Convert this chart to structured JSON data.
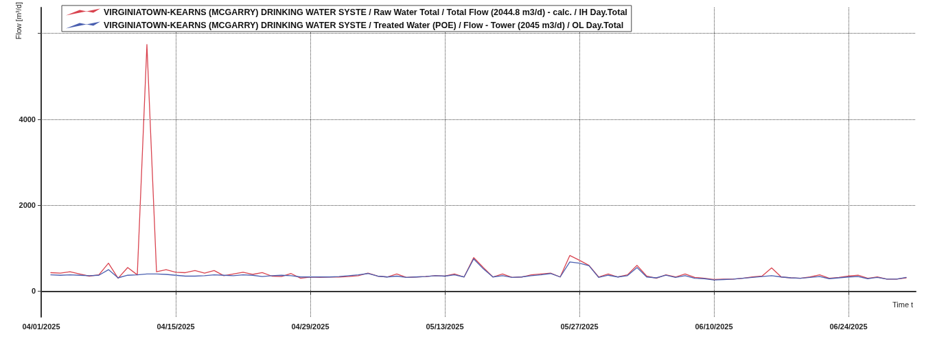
{
  "chart_data": {
    "type": "line",
    "ylabel": "Flow [m³/d]",
    "xlabel": "Time t",
    "legend": "top left",
    "grid": true,
    "marker": "none",
    "line_style": "solid",
    "xlim": [
      "2025-04-01",
      "2025-07-01"
    ],
    "xticks": [
      {
        "value": "2025-04-01",
        "label": "04/01/2025"
      },
      {
        "value": "2025-04-15",
        "label": "04/15/2025"
      },
      {
        "value": "2025-04-29",
        "label": "04/29/2025"
      },
      {
        "value": "2025-05-13",
        "label": "05/13/2025"
      },
      {
        "value": "2025-05-27",
        "label": "05/27/2025"
      },
      {
        "value": "2025-06-10",
        "label": "06/10/2025"
      },
      {
        "value": "2025-06-24",
        "label": "06/24/2025"
      }
    ],
    "ylim": [
      -600,
      6600
    ],
    "yticks": [
      0,
      2000,
      4000,
      {
        "value": 6000,
        "label": null
      }
    ],
    "x": [
      "2025-04-02",
      "2025-04-03",
      "2025-04-04",
      "2025-04-05",
      "2025-04-06",
      "2025-04-07",
      "2025-04-08",
      "2025-04-09",
      "2025-04-10",
      "2025-04-11",
      "2025-04-12",
      "2025-04-13",
      "2025-04-14",
      "2025-04-15",
      "2025-04-16",
      "2025-04-17",
      "2025-04-18",
      "2025-04-19",
      "2025-04-20",
      "2025-04-21",
      "2025-04-22",
      "2025-04-23",
      "2025-04-24",
      "2025-04-25",
      "2025-04-26",
      "2025-04-27",
      "2025-04-28",
      "2025-04-29",
      "2025-04-30",
      "2025-05-01",
      "2025-05-02",
      "2025-05-03",
      "2025-05-04",
      "2025-05-05",
      "2025-05-06",
      "2025-05-07",
      "2025-05-08",
      "2025-05-09",
      "2025-05-10",
      "2025-05-11",
      "2025-05-12",
      "2025-05-13",
      "2025-05-14",
      "2025-05-15",
      "2025-05-16",
      "2025-05-17",
      "2025-05-18",
      "2025-05-19",
      "2025-05-20",
      "2025-05-21",
      "2025-05-22",
      "2025-05-23",
      "2025-05-24",
      "2025-05-25",
      "2025-05-26",
      "2025-05-27",
      "2025-05-28",
      "2025-05-29",
      "2025-05-30",
      "2025-05-31",
      "2025-06-01",
      "2025-06-02",
      "2025-06-03",
      "2025-06-04",
      "2025-06-05",
      "2025-06-06",
      "2025-06-07",
      "2025-06-08",
      "2025-06-09",
      "2025-06-10",
      "2025-06-11",
      "2025-06-12",
      "2025-06-13",
      "2025-06-14",
      "2025-06-15",
      "2025-06-16",
      "2025-06-17",
      "2025-06-18",
      "2025-06-19",
      "2025-06-20",
      "2025-06-21",
      "2025-06-22",
      "2025-06-23",
      "2025-06-24",
      "2025-06-25",
      "2025-06-26",
      "2025-06-27",
      "2025-06-28",
      "2025-06-29",
      "2025-06-30"
    ],
    "series": [
      {
        "name": "VIRGINIATOWN-KEARNS (MCGARRY) DRINKING WATER SYSTE / Raw Water Total / Total Flow (2044.8 m3/d) - calc. / IH Day.Total",
        "color": "#d9434f",
        "values": [
          430,
          420,
          450,
          400,
          350,
          380,
          650,
          300,
          550,
          380,
          5740,
          450,
          500,
          440,
          430,
          480,
          420,
          480,
          360,
          400,
          440,
          390,
          430,
          350,
          340,
          410,
          300,
          330,
          320,
          330,
          330,
          340,
          360,
          420,
          350,
          330,
          400,
          320,
          330,
          340,
          360,
          350,
          400,
          330,
          780,
          550,
          330,
          400,
          320,
          330,
          380,
          400,
          420,
          330,
          830,
          720,
          600,
          330,
          400,
          330,
          380,
          600,
          350,
          300,
          380,
          330,
          400,
          320,
          300,
          270,
          280,
          280,
          300,
          330,
          350,
          540,
          330,
          310,
          300,
          330,
          380,
          300,
          320,
          350,
          370,
          300,
          330,
          280,
          280,
          310
        ]
      },
      {
        "name": "VIRGINIATOWN-KEARNS (MCGARRY) DRINKING WATER SYSTE / Treated Water (POE) / Flow - Tower (2045 m3/d) / OL Day.Total",
        "color": "#4a5fb0",
        "values": [
          380,
          370,
          380,
          370,
          360,
          370,
          500,
          310,
          370,
          380,
          400,
          400,
          390,
          370,
          350,
          350,
          360,
          380,
          370,
          360,
          380,
          370,
          340,
          360,
          370,
          360,
          330,
          330,
          330,
          330,
          340,
          360,
          380,
          410,
          350,
          330,
          350,
          320,
          330,
          340,
          360,
          350,
          380,
          330,
          750,
          520,
          330,
          360,
          320,
          330,
          360,
          380,
          410,
          330,
          680,
          650,
          590,
          320,
          370,
          330,
          360,
          550,
          330,
          310,
          370,
          320,
          360,
          300,
          290,
          260,
          270,
          280,
          300,
          320,
          340,
          360,
          330,
          310,
          300,
          320,
          340,
          290,
          310,
          330,
          340,
          290,
          320,
          280,
          280,
          320
        ]
      }
    ]
  }
}
